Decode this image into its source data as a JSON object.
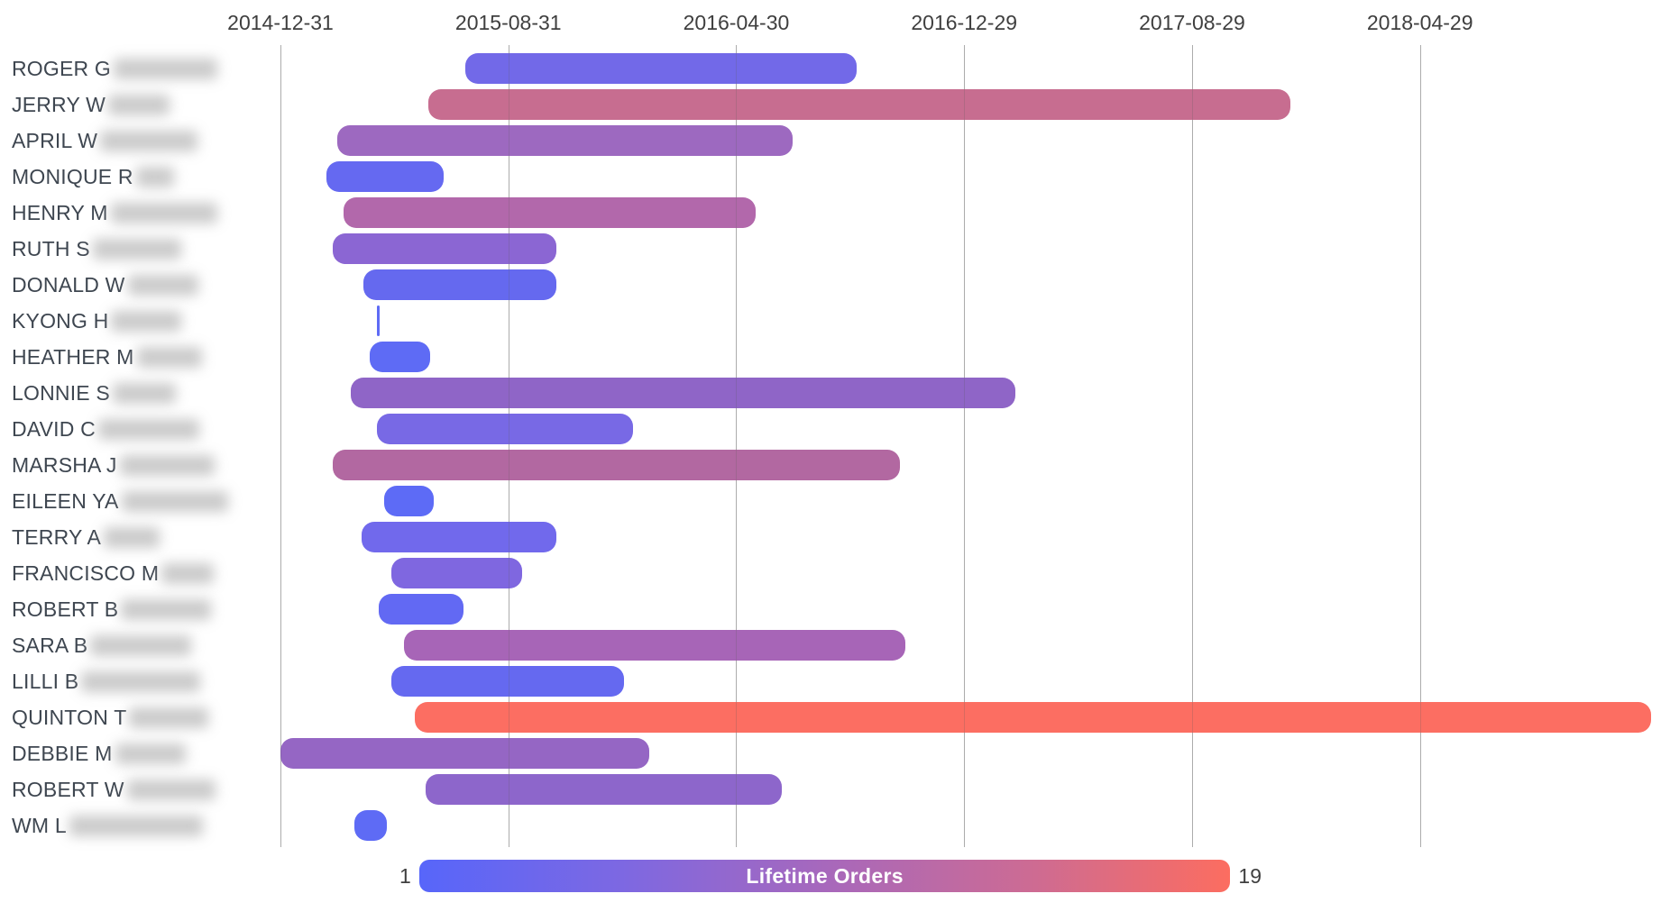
{
  "legend": {
    "min_label": "1",
    "max_label": "19",
    "title": "Lifetime Orders",
    "gradient_stops": [
      "#5766fa",
      "#7d68e2",
      "#a768bc",
      "#cc6b94",
      "#fc6d60"
    ]
  },
  "chart_data": {
    "type": "gantt",
    "title": "",
    "xlabel": "",
    "ylabel": "",
    "grid": true,
    "x_axis": {
      "ticks": [
        "2014-12-31",
        "2015-08-31",
        "2016-04-30",
        "2016-12-29",
        "2017-08-29",
        "2018-04-29"
      ],
      "range_start": "2014-12-31",
      "range_end": "2019-01-11"
    },
    "color_scale": {
      "label": "Lifetime Orders",
      "min": 1,
      "max": 19,
      "min_color": "#5766fa",
      "max_color": "#fc6d60"
    },
    "rows": [
      {
        "label": "ROGER G",
        "blur_w": 115,
        "start": "2015-07-16",
        "end": "2016-09-05",
        "color": "#7269e8"
      },
      {
        "label": "JERRY W",
        "blur_w": 68,
        "start": "2015-06-07",
        "end": "2017-12-12",
        "color": "#c76d90"
      },
      {
        "label": "APRIL W",
        "blur_w": 108,
        "start": "2015-03-02",
        "end": "2016-06-29",
        "color": "#9d69c0"
      },
      {
        "label": "MONIQUE R",
        "blur_w": 42,
        "start": "2015-02-18",
        "end": "2015-06-23",
        "color": "#6569f1"
      },
      {
        "label": "HENRY M",
        "blur_w": 118,
        "start": "2015-03-08",
        "end": "2016-05-21",
        "color": "#b268ab"
      },
      {
        "label": "RUTH S",
        "blur_w": 98,
        "start": "2015-02-25",
        "end": "2015-10-21",
        "color": "#8b66d3"
      },
      {
        "label": "DONALD W",
        "blur_w": 78,
        "start": "2015-03-29",
        "end": "2015-10-21",
        "color": "#6569ef"
      },
      {
        "label": "KYONG H",
        "blur_w": 78,
        "start": "2015-04-13",
        "end": "2015-04-15",
        "color": "#5e6bf5"
      },
      {
        "label": "HEATHER M",
        "blur_w": 72,
        "start": "2015-04-05",
        "end": "2015-06-09",
        "color": "#5e6bf5"
      },
      {
        "label": "LONNIE S",
        "blur_w": 70,
        "start": "2015-03-16",
        "end": "2017-02-22",
        "color": "#8f65c7"
      },
      {
        "label": "DAVID C",
        "blur_w": 112,
        "start": "2015-04-13",
        "end": "2016-01-11",
        "color": "#7869e5"
      },
      {
        "label": "MARSHA J",
        "blur_w": 105,
        "start": "2015-02-25",
        "end": "2016-10-22",
        "color": "#b268a1"
      },
      {
        "label": "EILEEN YA",
        "blur_w": 118,
        "start": "2015-04-21",
        "end": "2015-06-12",
        "color": "#5d6bf6"
      },
      {
        "label": "TERRY A",
        "blur_w": 62,
        "start": "2015-03-28",
        "end": "2015-10-21",
        "color": "#7169ec"
      },
      {
        "label": "FRANCISCO M",
        "blur_w": 58,
        "start": "2015-04-28",
        "end": "2015-09-15",
        "color": "#7f67e0"
      },
      {
        "label": "ROBERT B",
        "blur_w": 100,
        "start": "2015-04-15",
        "end": "2015-07-14",
        "color": "#6269f3"
      },
      {
        "label": "SARA B",
        "blur_w": 112,
        "start": "2015-05-12",
        "end": "2016-10-27",
        "color": "#a765b7"
      },
      {
        "label": "LILLI B",
        "blur_w": 132,
        "start": "2015-04-28",
        "end": "2016-01-01",
        "color": "#6569f0"
      },
      {
        "label": "QUINTON T",
        "blur_w": 88,
        "start": "2015-05-23",
        "end": "2018-12-31",
        "color": "#fc6e62"
      },
      {
        "label": "DEBBIE M",
        "blur_w": 78,
        "start": "2014-12-31",
        "end": "2016-01-28",
        "color": "#9566c4"
      },
      {
        "label": "ROBERT W",
        "blur_w": 98,
        "start": "2015-06-04",
        "end": "2016-06-18",
        "color": "#8d66cb"
      },
      {
        "label": "WM L",
        "blur_w": 148,
        "start": "2015-03-20",
        "end": "2015-04-23",
        "color": "#5e6bf5"
      }
    ]
  }
}
